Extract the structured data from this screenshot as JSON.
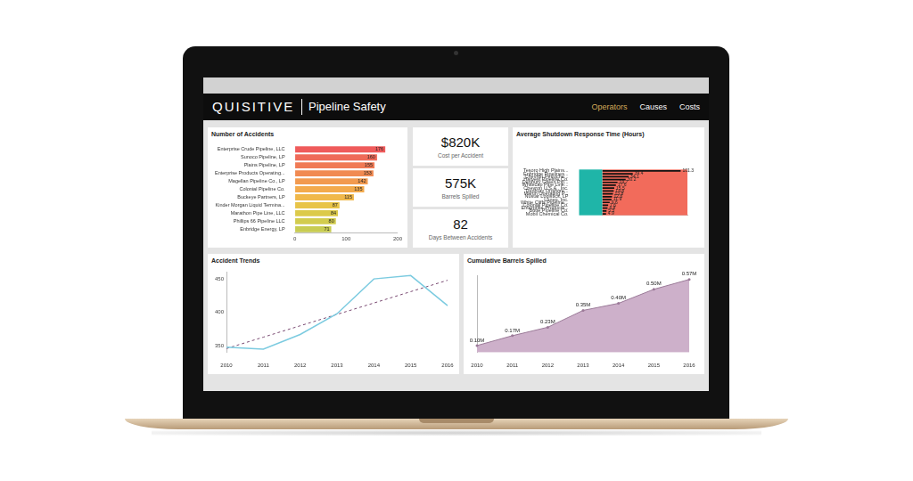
{
  "header": {
    "logo": "QUISITIVE",
    "title": "Pipeline Safety",
    "nav": [
      {
        "label": "Operators",
        "active": true
      },
      {
        "label": "Causes"
      },
      {
        "label": "Costs"
      }
    ]
  },
  "cards": [
    {
      "value": "$820K",
      "label": "Cost per Accident"
    },
    {
      "value": "575K",
      "label": "Barrels Spilled"
    },
    {
      "value": "82",
      "label": "Days Between Accidents"
    }
  ],
  "chart_data": [
    {
      "type": "bar",
      "title": "Number of Accidents",
      "orientation": "horizontal",
      "categories": [
        "Enterprise Crude Pipeline, LLC",
        "Sunoco Pipeline, LP",
        "Plains Pipeline, LP",
        "Enterprise Products Operating...",
        "Magellan Pipeline Co., LP",
        "Colonial Pipeline Co.",
        "Buckeye Partners, LP",
        "Kinder Morgan Liquid Termina...",
        "Marathon Pipe Line, LLC",
        "Phillips 66 Pipeline LLC",
        "Enbridge Energy, LP"
      ],
      "values": [
        176,
        160,
        155,
        153,
        142,
        135,
        115,
        87,
        84,
        80,
        71
      ],
      "colors": [
        "#ef5b5b",
        "#ef6a58",
        "#f07a55",
        "#f18a52",
        "#f29a4f",
        "#f3aa4c",
        "#f0b84a",
        "#e8c448",
        "#dcca4a",
        "#d2cc4e",
        "#c8cc52"
      ],
      "xlim": [
        0,
        200
      ],
      "xticks": [
        0,
        100,
        200
      ],
      "grid": false,
      "data_labels": true
    },
    {
      "type": "bar",
      "title": "Average Shutdown Response Time (Hours)",
      "orientation": "horizontal",
      "categories": [
        "Tesoro High Plains...",
        "Enbridge Pipelines...",
        "Chevron Petroche...",
        "Harvest Pipeline Co.",
        "Denbury Green Pip...",
        "Whitecap Pipe Line...",
        "Chevron U.S.A., Inc.",
        "Denbury Onshore...",
        "Martin Operating P...",
        "Nustar Logistics, LP",
        "Lonep, Inc.",
        "White Cliffs Pipeline...",
        "Colonial Pipeline Co.",
        "Enterprise Products...",
        "Butte Pipeline Co.",
        "Mobil Chemical Co."
      ],
      "values": [
        101.3,
        39.4,
        34.1,
        30.2,
        19.7,
        17.6,
        15.5,
        14.8,
        13.8,
        12.6,
        11.9,
        9.6,
        7.6,
        6.8,
        5.5,
        4.9
      ],
      "color": "#111111",
      "xlim": [
        0,
        110
      ],
      "grid": false,
      "tick_labels": "y",
      "data_labels": true
    },
    {
      "type": "line",
      "title": "Accident Trends",
      "categories": [
        "2010",
        "2011",
        "2012",
        "2013",
        "2014",
        "2015",
        "2016"
      ],
      "series": [
        {
          "color": "#7ccbe0",
          "values": [
            348,
            345,
            367,
            398,
            450,
            455,
            410
          ]
        },
        {
          "color": "#7a4a72",
          "line_style": "dashed",
          "values": [
            346,
            363,
            380,
            397,
            414,
            431,
            448
          ]
        }
      ],
      "ylim": [
        340,
        460
      ],
      "yticks": [
        350,
        400,
        450
      ],
      "grid": false
    },
    {
      "type": "area",
      "title": "Cumulative Barrels Spilled",
      "categories": [
        "2010",
        "2011",
        "2012",
        "2013",
        "2014",
        "2015",
        "2016"
      ],
      "values": [
        0.1,
        0.17,
        0.23,
        0.35,
        0.4,
        0.5,
        0.57
      ],
      "value_labels": [
        "0.10M",
        "0.17M",
        "0.23M",
        "0.35M",
        "0.40M",
        "0.50M",
        "0.57M"
      ],
      "color": "#cdb0ca",
      "ylim": [
        0.05,
        0.6
      ],
      "grid": false,
      "tick_labels": "x",
      "data_labels": true
    }
  ]
}
